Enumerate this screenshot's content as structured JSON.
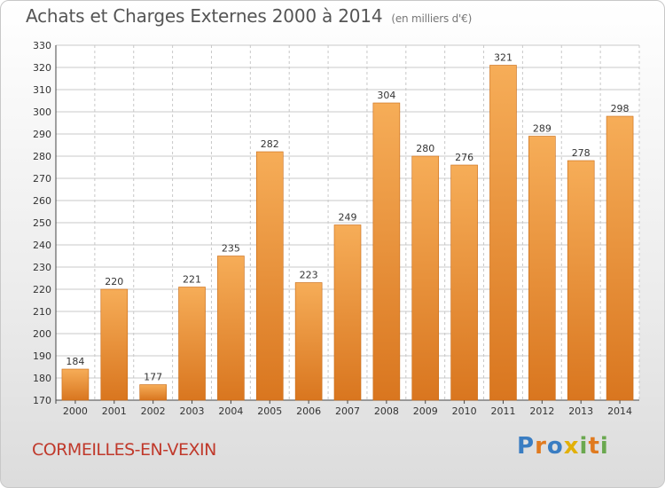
{
  "header": {
    "title": "Achats et Charges Externes 2000 à 2014",
    "subtitle": "(en milliers d'€)"
  },
  "footer": {
    "commune": "CORMEILLES-EN-VEXIN",
    "logo_text": "Proxiti",
    "logo_letters": [
      {
        "ch": "P",
        "color": "#3a7dc2"
      },
      {
        "ch": "r",
        "color": "#e07a1f"
      },
      {
        "ch": "o",
        "color": "#3a7dc2"
      },
      {
        "ch": "x",
        "color": "#e2b007"
      },
      {
        "ch": "i",
        "color": "#6aa84f"
      },
      {
        "ch": "t",
        "color": "#e07a1f"
      },
      {
        "ch": "i",
        "color": "#6aa84f"
      }
    ]
  },
  "colors": {
    "bar_top": "#f6ad58",
    "bar_bottom": "#d9761f",
    "bar_edge": "#c86a14",
    "grid": "#c8c8c8",
    "plot_bg": "#ffffff",
    "commune_text": "#c0392b"
  },
  "chart_data": {
    "type": "bar",
    "title": "Achats et Charges Externes 2000 à 2014",
    "subtitle": "(en milliers d'€)",
    "xlabel": "",
    "ylabel": "",
    "categories": [
      "2000",
      "2001",
      "2002",
      "2003",
      "2004",
      "2005",
      "2006",
      "2007",
      "2008",
      "2009",
      "2010",
      "2011",
      "2012",
      "2013",
      "2014"
    ],
    "values": [
      184,
      220,
      177,
      221,
      235,
      282,
      223,
      249,
      304,
      280,
      276,
      321,
      289,
      278,
      298
    ],
    "ylim": [
      170,
      330
    ],
    "yticks": [
      170,
      180,
      190,
      200,
      210,
      220,
      230,
      240,
      250,
      260,
      270,
      280,
      290,
      300,
      310,
      320,
      330
    ],
    "grid": true,
    "data_labels": true,
    "legend": "none"
  }
}
